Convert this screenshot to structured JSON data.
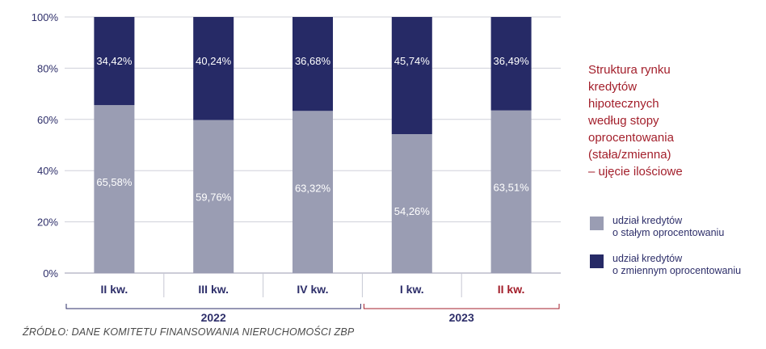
{
  "chart_data": {
    "type": "bar",
    "stacked": true,
    "categories": [
      "II kw.",
      "III kw.",
      "IV kw.",
      "I kw.",
      "II kw."
    ],
    "groups": [
      {
        "label": "2022",
        "from": 0,
        "to": 2,
        "color": "#2e2f6a"
      },
      {
        "label": "2023",
        "from": 3,
        "to": 4,
        "color": "#a31f2b"
      }
    ],
    "category_label_colors": [
      "#2e2f6a",
      "#2e2f6a",
      "#2e2f6a",
      "#2e2f6a",
      "#a31f2b"
    ],
    "series": [
      {
        "name": "udział kredytów o stałym oprocentowaniu",
        "values": [
          65.58,
          59.76,
          63.32,
          54.26,
          63.51
        ],
        "color": "#9a9db3",
        "labels": [
          "65,58%",
          "59,76%",
          "63,32%",
          "54,26%",
          "63,51%"
        ]
      },
      {
        "name": "udział kredytów o zmiennym oprocentowaniu",
        "values": [
          34.42,
          40.24,
          36.68,
          45.74,
          36.49
        ],
        "color": "#262a66",
        "labels": [
          "34,42%",
          "40,24%",
          "36,68%",
          "45,74%",
          "36,49%"
        ]
      }
    ],
    "ylim": [
      0,
      100
    ],
    "yticks": [
      0,
      20,
      40,
      60,
      80,
      100
    ],
    "ytick_labels": [
      "0%",
      "20%",
      "40%",
      "60%",
      "80%",
      "100%"
    ],
    "grid": true,
    "legend_position": "right"
  },
  "side_title_lines": [
    "Struktura rynku",
    "kredytów",
    "hipotecznych",
    "według stopy",
    "oprocentowania",
    "(stała/zmienna)",
    "– ujęcie ilościowe"
  ],
  "legend": [
    {
      "line1": "udział kredytów",
      "line2": "o stałym oprocentowaniu",
      "color": "#9a9db3"
    },
    {
      "line1": "udział kredytów",
      "line2": "o zmiennym oprocentowaniu",
      "color": "#262a66"
    }
  ],
  "source": "ŹRÓDŁO: DANE KOMITETU FINANSOWANIA NIERUCHOMOŚCI ZBP"
}
